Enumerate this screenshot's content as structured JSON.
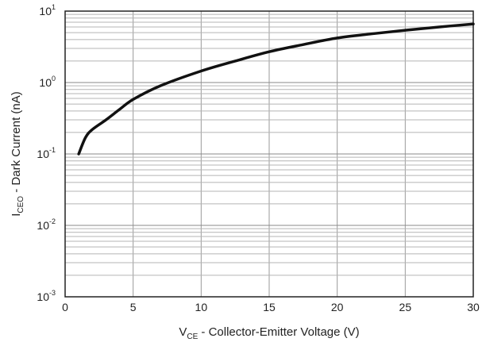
{
  "chart_data": {
    "type": "line",
    "x_axis": {
      "label_main": "V",
      "label_sub": "CE",
      "label_rest": " - Collector-Emitter Voltage (V)",
      "range": [
        0,
        30
      ],
      "ticks": [
        0,
        5,
        10,
        15,
        20,
        25,
        30
      ],
      "tick_labels": [
        "0",
        "5",
        "10",
        "15",
        "20",
        "25",
        "30"
      ],
      "scale": "linear"
    },
    "y_axis": {
      "label_main": "I",
      "label_sub": "CEO",
      "label_rest": " - Dark Current (nA)",
      "range": [
        0.001,
        10
      ],
      "scale": "log",
      "ticks": [
        {
          "value": 10,
          "base": "10",
          "exp": "1"
        },
        {
          "value": 1,
          "base": "10",
          "exp": "0"
        },
        {
          "value": 0.1,
          "base": "10",
          "exp": "-1"
        },
        {
          "value": 0.01,
          "base": "10",
          "exp": "-2"
        },
        {
          "value": 0.001,
          "base": "10",
          "exp": "-3"
        }
      ]
    },
    "grid": true,
    "series": [
      {
        "color": "#111111",
        "points": [
          {
            "x": 1.0,
            "y": 0.1
          },
          {
            "x": 1.5,
            "y": 0.17
          },
          {
            "x": 2.0,
            "y": 0.22
          },
          {
            "x": 3.0,
            "y": 0.3
          },
          {
            "x": 4.0,
            "y": 0.42
          },
          {
            "x": 5.0,
            "y": 0.58
          },
          {
            "x": 7.0,
            "y": 0.9
          },
          {
            "x": 10.0,
            "y": 1.45
          },
          {
            "x": 12.5,
            "y": 2.0
          },
          {
            "x": 15.0,
            "y": 2.7
          },
          {
            "x": 17.5,
            "y": 3.4
          },
          {
            "x": 20.0,
            "y": 4.2
          },
          {
            "x": 22.5,
            "y": 4.8
          },
          {
            "x": 25.0,
            "y": 5.4
          },
          {
            "x": 27.5,
            "y": 6.0
          },
          {
            "x": 30.0,
            "y": 6.6
          }
        ]
      }
    ]
  }
}
